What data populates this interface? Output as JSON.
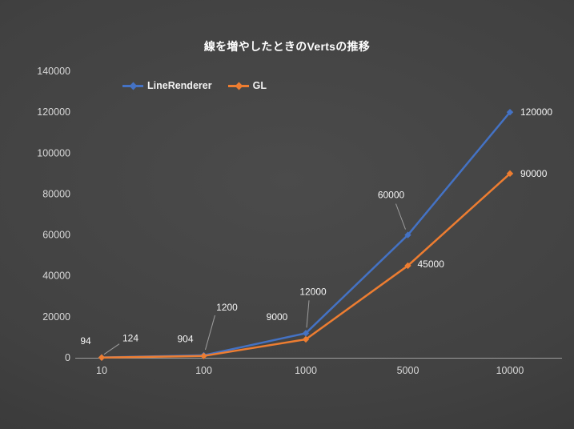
{
  "chart_data": {
    "type": "line",
    "title": "線を増やしたときのVertsの推移",
    "categories": [
      "10",
      "100",
      "1000",
      "5000",
      "10000"
    ],
    "ylim": [
      0,
      140000
    ],
    "ytick_step": 20000,
    "grid": false,
    "legend_position": "top",
    "series": [
      {
        "name": "LineRenderer",
        "color": "#4472c4",
        "values": [
          124,
          1200,
          12000,
          60000,
          120000
        ],
        "labels": [
          {
            "text": "124",
            "dx": 36,
            "dy": -20,
            "leader": [
              22,
              -17,
              3,
              -4
            ]
          },
          {
            "text": "1200",
            "dx": 29,
            "dy": -56,
            "leader": [
              14,
              -50,
              2,
              -7
            ]
          },
          {
            "text": "12000",
            "dx": 9,
            "dy": -48,
            "leader": [
              4,
              -41,
              1,
              -7
            ]
          },
          {
            "text": "60000",
            "dx": -21,
            "dy": -46,
            "leader": [
              -15,
              -39,
              -3,
              -7
            ]
          },
          {
            "text": "120000",
            "dx": 13,
            "dy": 4,
            "anchor": "start"
          }
        ]
      },
      {
        "name": "GL",
        "color": "#ed7d31",
        "values": [
          94,
          904,
          9000,
          45000,
          90000
        ],
        "labels": [
          {
            "text": "94",
            "dx": -20,
            "dy": -17
          },
          {
            "text": "904",
            "dx": -23,
            "dy": -17
          },
          {
            "text": "9000",
            "dx": -36,
            "dy": -24
          },
          {
            "text": "45000",
            "dx": 12,
            "dy": 2,
            "anchor": "start"
          },
          {
            "text": "90000",
            "dx": 13,
            "dy": 4,
            "anchor": "start"
          }
        ]
      }
    ]
  }
}
